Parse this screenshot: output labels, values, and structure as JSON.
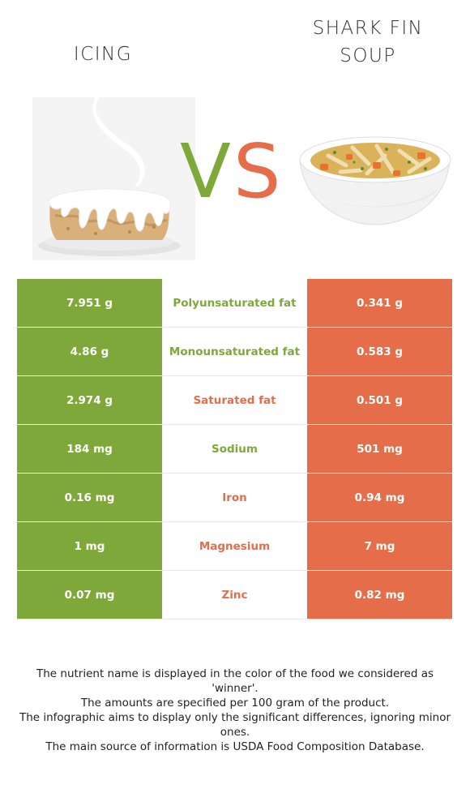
{
  "foods": {
    "left": {
      "name": "ICING",
      "color": "#7ea83a"
    },
    "right": {
      "name": "SHARK FIN\nSOUP",
      "color": "#e56d4a"
    }
  },
  "vs": {
    "v": "V",
    "s": "S"
  },
  "rows": [
    {
      "left": "7.951 g",
      "nutrient": "Polyunsaturated fat",
      "right": "0.341 g",
      "winner": "left"
    },
    {
      "left": "4.86 g",
      "nutrient": "Monounsaturated fat",
      "right": "0.583 g",
      "winner": "left"
    },
    {
      "left": "2.974 g",
      "nutrient": "Saturated fat",
      "right": "0.501 g",
      "winner": "right"
    },
    {
      "left": "184 mg",
      "nutrient": "Sodium",
      "right": "501 mg",
      "winner": "left"
    },
    {
      "left": "0.16 mg",
      "nutrient": "Iron",
      "right": "0.94 mg",
      "winner": "right"
    },
    {
      "left": "1 mg",
      "nutrient": "Magnesium",
      "right": "7 mg",
      "winner": "right"
    },
    {
      "left": "0.07 mg",
      "nutrient": "Zinc",
      "right": "0.82 mg",
      "winner": "right"
    }
  ],
  "notes": [
    "The nutrient name is displayed in the color of the food we considered as 'winner'.",
    "The amounts are specified per 100 gram of the product.",
    "The infographic aims to display only the significant differences, ignoring minor ones.",
    "The main source of information is USDA Food Composition Database."
  ]
}
